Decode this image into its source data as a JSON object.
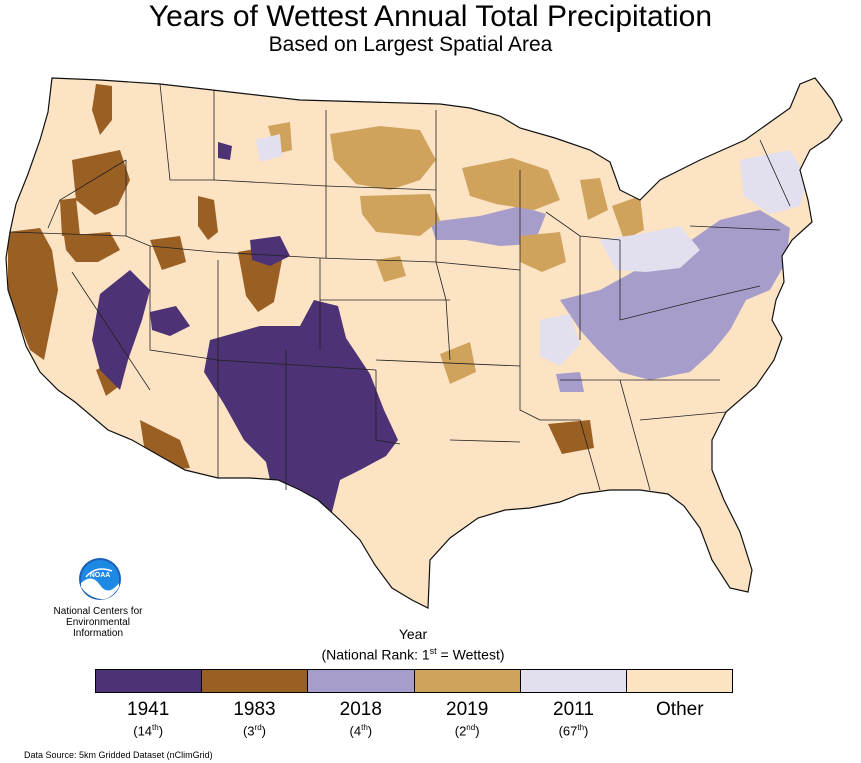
{
  "title": "Years of Wettest Annual Total Precipitation",
  "subtitle": "Based on Largest Spatial Area",
  "organization": {
    "logo_text": "NOAA",
    "logo_icon": "noaa-logo-icon",
    "lines": [
      "National Centers for",
      "Environmental",
      "Information"
    ]
  },
  "legend": {
    "title": "Year",
    "subtitle_prefix": "(National Rank: 1",
    "subtitle_sup": "st",
    "subtitle_suffix": " = Wettest)",
    "items": [
      {
        "year": "1941",
        "rank_num": "(14",
        "rank_sup": "th",
        "rank_end": ")",
        "color": "#4d3275"
      },
      {
        "year": "1983",
        "rank_num": "(3",
        "rank_sup": "rd",
        "rank_end": ")",
        "color": "#9a5f22"
      },
      {
        "year": "2018",
        "rank_num": "(4",
        "rank_sup": "th",
        "rank_end": ")",
        "color": "#a79dca"
      },
      {
        "year": "2019",
        "rank_num": "(2",
        "rank_sup": "nd",
        "rank_end": ")",
        "color": "#d0a35c"
      },
      {
        "year": "2011",
        "rank_num": "(67",
        "rank_sup": "th",
        "rank_end": ")",
        "color": "#e2e0ee"
      },
      {
        "year": "Other",
        "rank_num": "",
        "rank_sup": "",
        "rank_end": "",
        "color": "#fbe3c4"
      }
    ]
  },
  "map_colors": {
    "other": "#fbe3c4",
    "y1941": "#4d3275",
    "y1983": "#9a5f22",
    "y2018": "#a79dca",
    "y2019": "#d0a35c",
    "y2011": "#e2e0ee",
    "border": "#222222"
  },
  "source": "Data Source: 5km Gridded Dataset (nClimGrid)"
}
